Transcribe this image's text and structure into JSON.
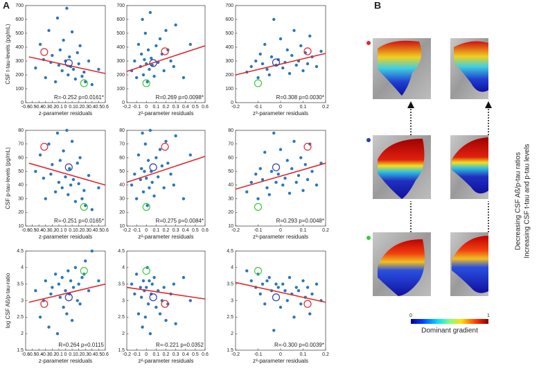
{
  "panel_labels": [
    "A",
    "B"
  ],
  "side_labels": [
    "Decreasing CSF Aß/p-tau ratios",
    "Increasing CSF t-tau and p-tau levels"
  ],
  "colorbar": {
    "label": "Dominant gradient",
    "ticks": [
      0,
      1
    ]
  },
  "chart_data": [
    {
      "type": "scatter",
      "ylabel": "CSF t-tau-levels (pg/mL)",
      "xlabel": "z-parameter residuals",
      "annotation": "R=-0.252 p=0.0161*",
      "color": "#2a78b8",
      "x": [
        -0.45,
        -0.38,
        -0.33,
        -0.3,
        -0.25,
        -0.22,
        -0.2,
        -0.15,
        -0.12,
        -0.1,
        -0.08,
        -0.05,
        -0.03,
        0,
        0.02,
        0.04,
        0.06,
        0.08,
        0.1,
        0.12,
        0.15,
        0.18,
        0.2,
        0.22,
        0.25,
        0.28,
        0.3,
        0.35,
        0.4,
        0.5
      ],
      "y": [
        250,
        420,
        310,
        180,
        520,
        290,
        340,
        150,
        610,
        270,
        380,
        230,
        450,
        300,
        680,
        200,
        330,
        260,
        510,
        240,
        170,
        360,
        280,
        410,
        190,
        220,
        150,
        300,
        130,
        240
      ],
      "fit": {
        "color": "#e0282e",
        "x": [
          -0.55,
          0.6
        ],
        "y": [
          330,
          210
        ]
      },
      "highlights": [
        {
          "color": "#e0282e",
          "x": -0.32,
          "y": 365
        },
        {
          "color": "#2b3fa8",
          "x": 0.05,
          "y": 285
        },
        {
          "color": "#3cc83c",
          "x": 0.28,
          "y": 140
        }
      ],
      "xlim": [
        -0.6,
        0.6
      ],
      "xticks": [
        -0.6,
        -0.5,
        -0.4,
        -0.3,
        -0.2,
        -0.1,
        0,
        0.1,
        0.2,
        0.3,
        0.4,
        0.5,
        0.6
      ],
      "ylim": [
        0,
        700
      ],
      "yticks": [
        0,
        100,
        200,
        300,
        400,
        500,
        600,
        700
      ]
    },
    {
      "type": "scatter",
      "xlabel": "z²-parameter residuals",
      "annotation": "R=0.269 p=0.0098*",
      "color": "#2a78b8",
      "x": [
        -0.15,
        -0.12,
        -0.1,
        -0.08,
        -0.06,
        -0.05,
        -0.04,
        -0.03,
        -0.02,
        -0.01,
        0,
        0.01,
        0.02,
        0.03,
        0.04,
        0.05,
        0.06,
        0.08,
        0.1,
        0.12,
        0.14,
        0.16,
        0.18,
        0.2,
        0.22,
        0.25,
        0.28,
        0.3,
        0.38,
        0.45
      ],
      "y": [
        230,
        300,
        180,
        420,
        260,
        350,
        600,
        200,
        310,
        500,
        280,
        150,
        380,
        240,
        650,
        320,
        270,
        190,
        410,
        290,
        460,
        350,
        230,
        520,
        380,
        300,
        260,
        560,
        180,
        420
      ],
      "fit": {
        "color": "#e0282e",
        "x": [
          -0.2,
          0.6
        ],
        "y": [
          225,
          410
        ]
      },
      "highlights": [
        {
          "color": "#e0282e",
          "x": 0.19,
          "y": 370
        },
        {
          "color": "#2b3fa8",
          "x": 0.07,
          "y": 285
        },
        {
          "color": "#3cc83c",
          "x": 0,
          "y": 140
        }
      ],
      "xlim": [
        -0.2,
        0.6
      ],
      "xticks": [
        -0.2,
        -0.1,
        0,
        0.1,
        0.2,
        0.3,
        0.4,
        0.5,
        0.6
      ],
      "ylim": [
        0,
        700
      ],
      "yticks": [
        0,
        100,
        200,
        300,
        400,
        500,
        600,
        700
      ]
    },
    {
      "type": "scatter",
      "xlabel": "z³-parameter residuals",
      "annotation": "R=0.308 p=0.0030*",
      "color": "#2a78b8",
      "x": [
        -0.15,
        -0.13,
        -0.11,
        -0.1,
        -0.09,
        -0.08,
        -0.07,
        -0.06,
        -0.05,
        -0.04,
        -0.03,
        -0.02,
        -0.01,
        0,
        0.01,
        0.02,
        0.03,
        0.04,
        0.05,
        0.06,
        0.07,
        0.08,
        0.09,
        0.1,
        0.11,
        0.12,
        0.13,
        0.14,
        0.16,
        0.18
      ],
      "y": [
        220,
        260,
        300,
        180,
        350,
        280,
        420,
        240,
        200,
        330,
        600,
        270,
        310,
        460,
        250,
        290,
        380,
        210,
        340,
        520,
        270,
        300,
        410,
        230,
        360,
        280,
        480,
        330,
        260,
        370
      ],
      "fit": {
        "color": "#e0282e",
        "x": [
          -0.2,
          0.2
        ],
        "y": [
          200,
          355
        ]
      },
      "highlights": [
        {
          "color": "#e0282e",
          "x": 0.12,
          "y": 370
        },
        {
          "color": "#2b3fa8",
          "x": -0.02,
          "y": 290
        },
        {
          "color": "#3cc83c",
          "x": -0.1,
          "y": 140
        }
      ],
      "xlim": [
        -0.2,
        0.2
      ],
      "xticks": [
        -0.2,
        -0.1,
        0,
        0.1,
        0.2
      ],
      "ylim": [
        0,
        700
      ],
      "yticks": [
        0,
        100,
        200,
        300,
        400,
        500,
        600,
        700
      ]
    },
    {
      "type": "scatter",
      "ylabel": "CSF p-tau-levels (pg/mL)",
      "xlabel": "z-parameter residuals",
      "annotation": "R=-0.251 p=0.0165*",
      "color": "#2a78b8",
      "x": [
        -0.45,
        -0.38,
        -0.33,
        -0.3,
        -0.25,
        -0.22,
        -0.2,
        -0.15,
        -0.12,
        -0.1,
        -0.08,
        -0.05,
        -0.03,
        0,
        0.02,
        0.04,
        0.06,
        0.08,
        0.1,
        0.12,
        0.15,
        0.18,
        0.2,
        0.22,
        0.25,
        0.28,
        0.3,
        0.35,
        0.4,
        0.5
      ],
      "y": [
        50,
        62,
        45,
        30,
        70,
        48,
        55,
        35,
        78,
        42,
        58,
        38,
        65,
        46,
        80,
        33,
        52,
        40,
        72,
        44,
        28,
        56,
        41,
        60,
        30,
        36,
        25,
        47,
        22,
        38
      ],
      "fit": {
        "color": "#e0282e",
        "x": [
          -0.55,
          0.6
        ],
        "y": [
          56,
          40
        ]
      },
      "highlights": [
        {
          "color": "#e0282e",
          "x": -0.32,
          "y": 68
        },
        {
          "color": "#2b3fa8",
          "x": 0.05,
          "y": 53
        },
        {
          "color": "#3cc83c",
          "x": 0.28,
          "y": 24
        }
      ],
      "xlim": [
        -0.6,
        0.6
      ],
      "xticks": [
        -0.6,
        -0.5,
        -0.4,
        -0.3,
        -0.2,
        -0.1,
        0,
        0.1,
        0.2,
        0.3,
        0.4,
        0.5,
        0.6
      ],
      "ylim": [
        10,
        80
      ],
      "yticks": [
        10,
        20,
        30,
        40,
        50,
        60,
        70,
        80
      ]
    },
    {
      "type": "scatter",
      "xlabel": "z²-parameter residuals",
      "annotation": "R=0.275 p=0.0084*",
      "color": "#2a78b8",
      "x": [
        -0.15,
        -0.12,
        -0.1,
        -0.08,
        -0.06,
        -0.05,
        -0.04,
        -0.03,
        -0.02,
        -0.01,
        0,
        0.01,
        0.02,
        0.03,
        0.04,
        0.05,
        0.06,
        0.08,
        0.1,
        0.12,
        0.14,
        0.16,
        0.18,
        0.2,
        0.22,
        0.25,
        0.28,
        0.3,
        0.38,
        0.45
      ],
      "y": [
        40,
        48,
        30,
        62,
        44,
        52,
        78,
        35,
        50,
        70,
        45,
        25,
        58,
        38,
        80,
        50,
        42,
        32,
        60,
        46,
        66,
        54,
        38,
        72,
        56,
        48,
        40,
        76,
        30,
        62
      ],
      "fit": {
        "color": "#e0282e",
        "x": [
          -0.2,
          0.6
        ],
        "y": [
          42,
          61
        ]
      },
      "highlights": [
        {
          "color": "#e0282e",
          "x": 0.19,
          "y": 68
        },
        {
          "color": "#2b3fa8",
          "x": 0.07,
          "y": 53
        },
        {
          "color": "#3cc83c",
          "x": 0,
          "y": 24
        }
      ],
      "xlim": [
        -0.2,
        0.6
      ],
      "xticks": [
        -0.2,
        -0.1,
        0,
        0.1,
        0.2,
        0.3,
        0.4,
        0.5,
        0.6
      ],
      "ylim": [
        10,
        80
      ],
      "yticks": [
        10,
        20,
        30,
        40,
        50,
        60,
        70,
        80
      ]
    },
    {
      "type": "scatter",
      "xlabel": "z³-parameter residuals",
      "annotation": "R=0.293 p=0.0048*",
      "color": "#2a78b8",
      "x": [
        -0.15,
        -0.13,
        -0.11,
        -0.1,
        -0.09,
        -0.08,
        -0.07,
        -0.06,
        -0.05,
        -0.04,
        -0.03,
        -0.02,
        -0.01,
        0,
        0.01,
        0.02,
        0.03,
        0.04,
        0.05,
        0.06,
        0.07,
        0.08,
        0.09,
        0.1,
        0.11,
        0.12,
        0.13,
        0.14,
        0.16,
        0.18
      ],
      "y": [
        35,
        42,
        48,
        30,
        52,
        44,
        64,
        38,
        33,
        50,
        78,
        42,
        48,
        66,
        40,
        45,
        58,
        34,
        52,
        72,
        42,
        47,
        60,
        36,
        55,
        44,
        70,
        50,
        40,
        56
      ],
      "fit": {
        "color": "#e0282e",
        "x": [
          -0.2,
          0.2
        ],
        "y": [
          37,
          56
        ]
      },
      "highlights": [
        {
          "color": "#e0282e",
          "x": 0.12,
          "y": 68
        },
        {
          "color": "#2b3fa8",
          "x": -0.02,
          "y": 53
        },
        {
          "color": "#3cc83c",
          "x": -0.1,
          "y": 24
        }
      ],
      "xlim": [
        -0.2,
        0.2
      ],
      "xticks": [
        -0.2,
        -0.1,
        0,
        0.1,
        0.2
      ],
      "ylim": [
        10,
        80
      ],
      "yticks": [
        10,
        20,
        30,
        40,
        50,
        60,
        70,
        80
      ]
    },
    {
      "type": "scatter",
      "ylabel": "log CSF Aß/p-tau-ratio",
      "xlabel": "z-parameter residuals",
      "annotation": "R=0.264 p=0.0115",
      "color": "#2a78b8",
      "x": [
        -0.45,
        -0.38,
        -0.33,
        -0.3,
        -0.25,
        -0.22,
        -0.2,
        -0.15,
        -0.12,
        -0.1,
        -0.08,
        -0.05,
        -0.03,
        0,
        0.02,
        0.04,
        0.06,
        0.08,
        0.1,
        0.12,
        0.15,
        0.18,
        0.2,
        0.22,
        0.25,
        0.28,
        0.3,
        0.35,
        0.4,
        0.5
      ],
      "y": [
        3.3,
        2.5,
        3.0,
        3.6,
        2.2,
        3.2,
        3.4,
        3.8,
        2.0,
        3.5,
        3.1,
        3.7,
        2.8,
        3.3,
        2.6,
        3.9,
        3.2,
        3.6,
        2.4,
        3.4,
        4.0,
        3.0,
        3.5,
        2.9,
        3.7,
        3.8,
        4.2,
        3.3,
        4.5,
        3.6
      ],
      "fit": {
        "color": "#e0282e",
        "x": [
          -0.55,
          0.6
        ],
        "y": [
          2.95,
          3.5
        ]
      },
      "highlights": [
        {
          "color": "#e0282e",
          "x": -0.32,
          "y": 2.9
        },
        {
          "color": "#2b3fa8",
          "x": 0.05,
          "y": 3.1
        },
        {
          "color": "#3cc83c",
          "x": 0.28,
          "y": 3.9
        }
      ],
      "xlim": [
        -0.6,
        0.6
      ],
      "xticks": [
        -0.6,
        -0.5,
        -0.4,
        -0.3,
        -0.2,
        -0.1,
        0,
        0.1,
        0.2,
        0.3,
        0.4,
        0.5,
        0.6
      ],
      "ylim": [
        1.5,
        4.5
      ],
      "yticks": [
        1.5,
        2,
        2.5,
        3,
        3.5,
        4,
        4.5
      ]
    },
    {
      "type": "scatter",
      "xlabel": "z²-parameter residuals",
      "annotation": "R=-0.221 p=0.0352",
      "color": "#2a78b8",
      "x": [
        -0.15,
        -0.12,
        -0.1,
        -0.08,
        -0.06,
        -0.05,
        -0.04,
        -0.03,
        -0.02,
        -0.01,
        0,
        0.01,
        0.02,
        0.03,
        0.04,
        0.05,
        0.06,
        0.08,
        0.1,
        0.12,
        0.14,
        0.16,
        0.18,
        0.2,
        0.22,
        0.25,
        0.28,
        0.3,
        0.38,
        0.45
      ],
      "y": [
        3.5,
        3.2,
        3.8,
        2.6,
        3.4,
        3.1,
        2.2,
        3.6,
        3.3,
        2.5,
        3.4,
        4.0,
        2.9,
        3.6,
        2.0,
        3.2,
        3.5,
        3.7,
        2.8,
        3.3,
        2.6,
        3.0,
        3.4,
        2.4,
        2.9,
        3.2,
        3.5,
        2.3,
        3.7,
        3.0
      ],
      "fit": {
        "color": "#e0282e",
        "x": [
          -0.2,
          0.6
        ],
        "y": [
          3.4,
          3.05
        ]
      },
      "highlights": [
        {
          "color": "#e0282e",
          "x": 0.19,
          "y": 2.9
        },
        {
          "color": "#2b3fa8",
          "x": 0.07,
          "y": 3.1
        },
        {
          "color": "#3cc83c",
          "x": 0,
          "y": 3.9
        }
      ],
      "xlim": [
        -0.2,
        0.6
      ],
      "xticks": [
        -0.2,
        -0.1,
        0,
        0.1,
        0.2,
        0.3,
        0.4,
        0.5,
        0.6
      ],
      "ylim": [
        1.5,
        4.5
      ],
      "yticks": [
        1.5,
        2,
        2.5,
        3,
        3.5,
        4,
        4.5
      ]
    },
    {
      "type": "scatter",
      "xlabel": "z³-parameter residuals",
      "annotation": "R=-0.300 p=0.0039*",
      "color": "#2a78b8",
      "x": [
        -0.15,
        -0.13,
        -0.11,
        -0.1,
        -0.09,
        -0.08,
        -0.07,
        -0.06,
        -0.05,
        -0.04,
        -0.03,
        -0.02,
        -0.01,
        0,
        0.01,
        0.02,
        0.03,
        0.04,
        0.05,
        0.06,
        0.07,
        0.08,
        0.09,
        0.1,
        0.11,
        0.12,
        0.13,
        0.14,
        0.16,
        0.18
      ],
      "y": [
        3.9,
        3.6,
        3.4,
        3.8,
        3.2,
        3.5,
        2.9,
        3.6,
        3.7,
        3.3,
        2.1,
        3.5,
        3.4,
        2.8,
        3.5,
        3.3,
        3.0,
        3.7,
        3.2,
        2.5,
        3.4,
        3.3,
        2.9,
        3.6,
        3.1,
        3.4,
        2.6,
        3.2,
        3.5,
        3.0
      ],
      "fit": {
        "color": "#e0282e",
        "x": [
          -0.2,
          0.2
        ],
        "y": [
          3.55,
          2.95
        ]
      },
      "highlights": [
        {
          "color": "#e0282e",
          "x": 0.12,
          "y": 2.9
        },
        {
          "color": "#2b3fa8",
          "x": -0.02,
          "y": 3.1
        },
        {
          "color": "#3cc83c",
          "x": -0.1,
          "y": 3.9
        }
      ],
      "xlim": [
        -0.2,
        0.2
      ],
      "xticks": [
        -0.2,
        -0.1,
        0,
        0.1,
        0.2
      ],
      "ylim": [
        1.5,
        4.5
      ],
      "yticks": [
        1.5,
        2,
        2.5,
        3,
        3.5,
        4,
        4.5
      ]
    }
  ]
}
